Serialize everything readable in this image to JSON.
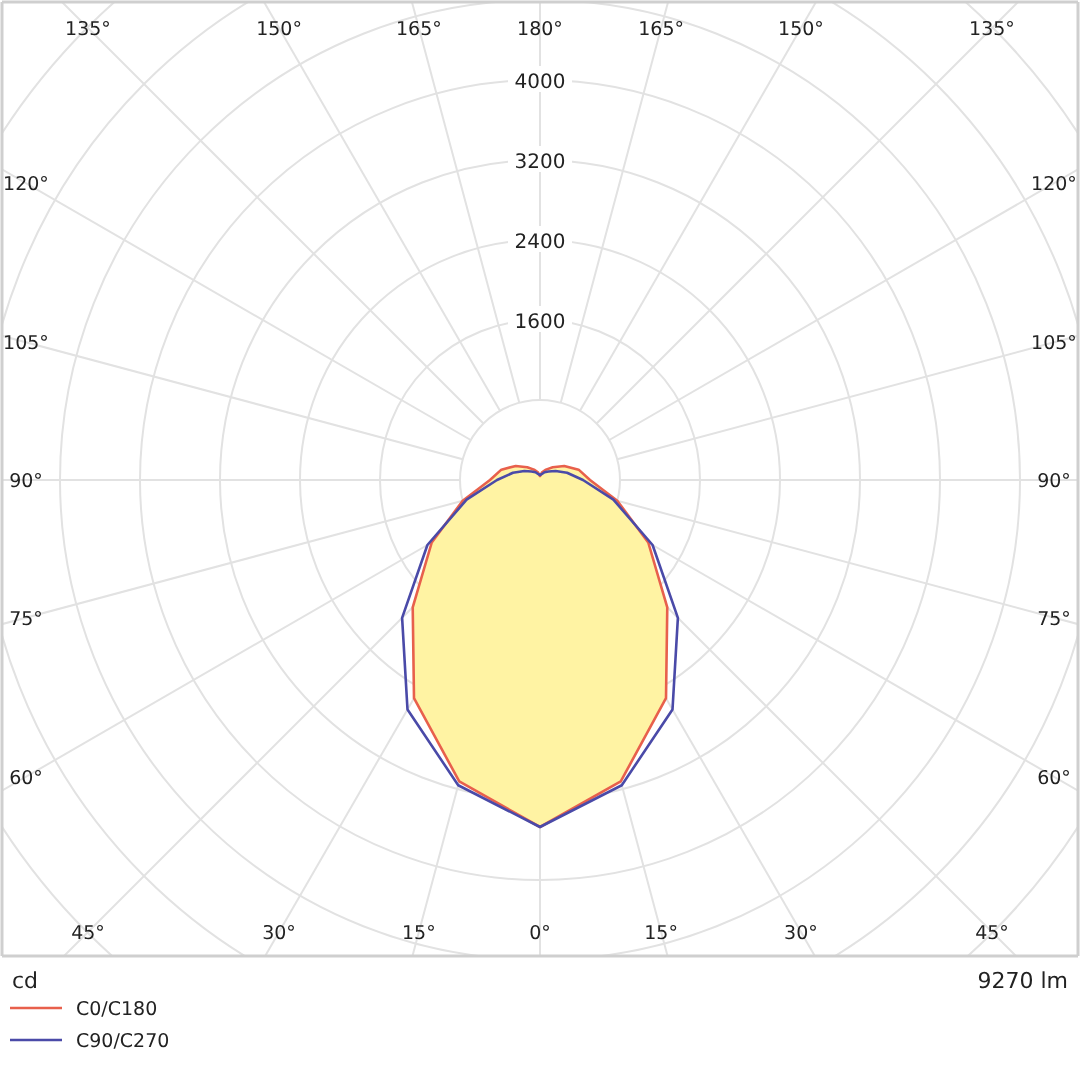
{
  "chart_data": {
    "type": "radar",
    "categories": [
      "180°",
      "165°",
      "150°",
      "135°",
      "120°",
      "105°",
      "90°",
      "75°",
      "60°",
      "45°",
      "30°",
      "15°",
      "0°",
      "15°",
      "30°",
      "45°",
      "60°",
      "75°",
      "90°",
      "105°",
      "120°",
      "135°",
      "150°",
      "165°"
    ],
    "series": [
      {
        "name": "C0/C180",
        "color": "#e8604c",
        "values": [
          40,
          80,
          120,
          180,
          280,
          400,
          500,
          800,
          1250,
          1800,
          2520,
          3120,
          3470,
          3120,
          2520,
          1800,
          1250,
          800,
          500,
          400,
          280,
          180,
          120,
          80
        ]
      },
      {
        "name": "C90/C270",
        "color": "#4a4aa8",
        "values": [
          50,
          60,
          90,
          120,
          180,
          280,
          430,
          760,
          1300,
          1950,
          2650,
          3160,
          3470,
          3160,
          2650,
          1950,
          1300,
          760,
          430,
          280,
          180,
          120,
          90,
          60
        ]
      }
    ],
    "ylim": [
      0,
      7200
    ],
    "yticks": [
      1600,
      2400,
      3200,
      4000
    ],
    "grid": true,
    "legend": "bottom left",
    "line_style": "solid",
    "annotations": [
      "cd",
      "9270 lm"
    ]
  }
}
